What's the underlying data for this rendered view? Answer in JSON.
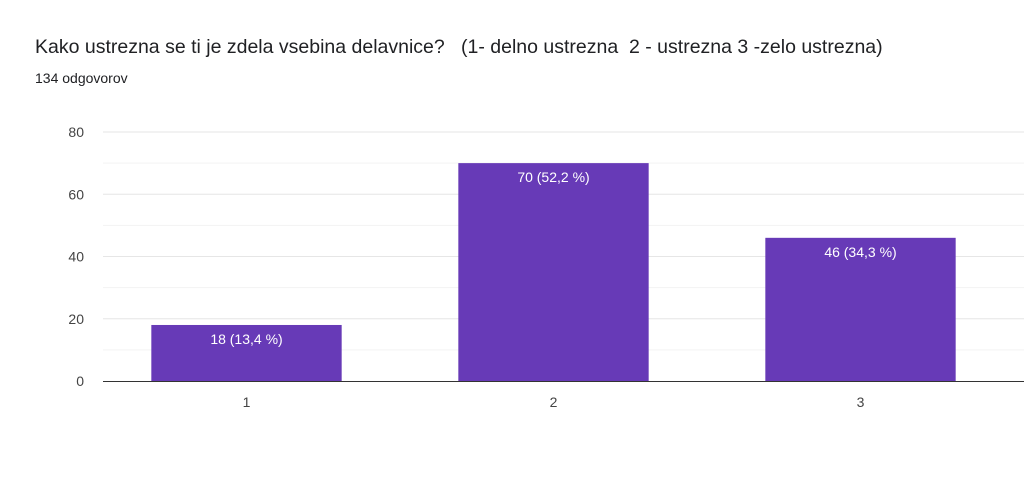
{
  "form": {
    "question": "Kako ustrezna se ti je zdela vsebina delavnice?   (1- delno ustrezna  2 - ustrezna 3 -zelo ustrezna)",
    "response_count": "134 odgovorov"
  },
  "chart_data": {
    "type": "bar",
    "categories": [
      "1",
      "2",
      "3"
    ],
    "values": [
      18,
      70,
      46
    ],
    "data_labels": [
      "18 (13,4 %)",
      "70 (52,2 %)",
      "46 (34,3 %)"
    ],
    "yticks": [
      "0",
      "20",
      "40",
      "60",
      "80"
    ],
    "ylim": [
      0,
      80
    ],
    "grid": true,
    "bar_color": "#673ab7",
    "title": "Kako ustrezna se ti je zdela vsebina delavnice?   (1- delno ustrezna  2 - ustrezna 3 -zelo ustrezna)",
    "subtitle": "134 odgovorov",
    "xlabel": "",
    "ylabel": ""
  }
}
